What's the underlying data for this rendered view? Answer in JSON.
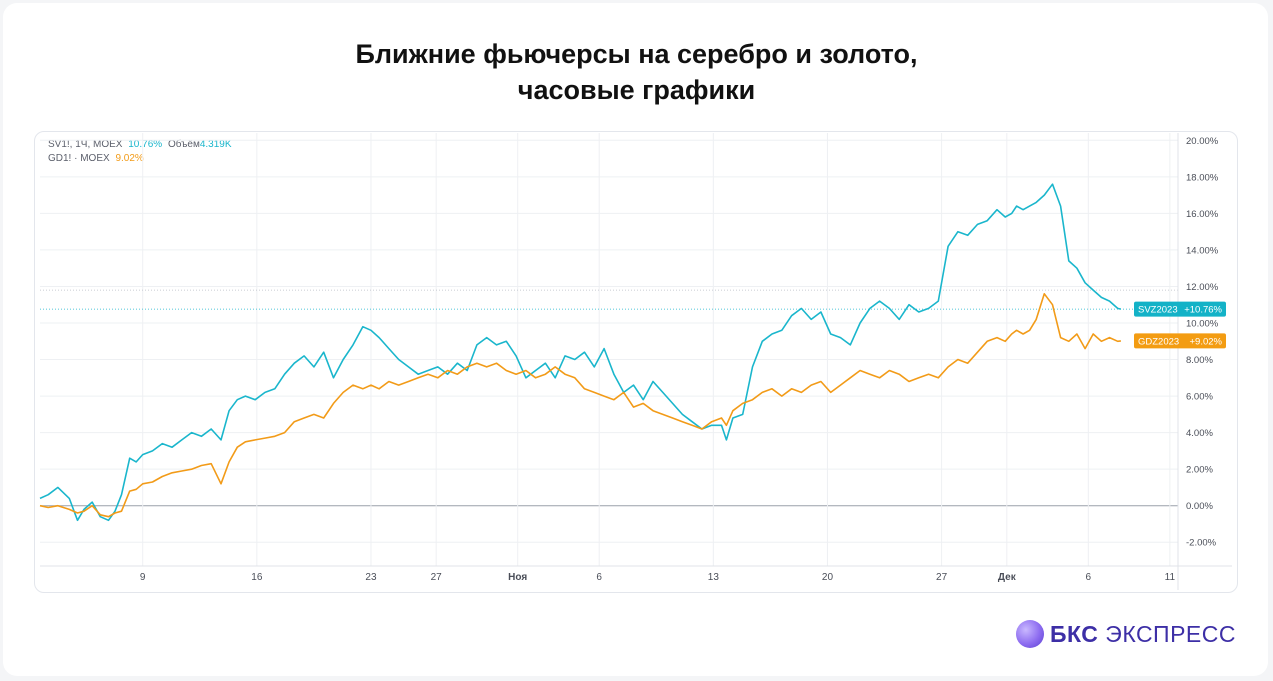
{
  "header": {
    "title_line1": "Ближние фьючерсы на серебро и золото,",
    "title_line2": "часовые графики"
  },
  "legend": {
    "silver_symbol": "SV1!, 1Ч, MOEX",
    "silver_value": "10.76%",
    "volume_label": "Объём",
    "volume_value": "4.319K",
    "gold_symbol": "GD1! · MOEX",
    "gold_value": "9.02%"
  },
  "price_labels": {
    "silver_badge": "SVZ2023",
    "silver_change": "+10.76%",
    "gold_badge": "GDZ2023",
    "gold_change": "+9.02%"
  },
  "brand": {
    "name_bold": "БКС",
    "name_regular": "ЭКСПРЕСС"
  },
  "colors": {
    "silver": "#1ab6cc",
    "gold": "#f29b18",
    "gold_badge": "#f39c12",
    "silver_badge": "#13b2c7",
    "grid": "#eef0f3",
    "zero_line": "#9aa0aa"
  },
  "chart_data": {
    "type": "line",
    "title": "Ближние фьючерсы на серебро и золото, часовые графики",
    "xlabel": "",
    "ylabel": "",
    "x_ticks": [
      "9",
      "16",
      "23",
      "27",
      "Ноя",
      "6",
      "13",
      "20",
      "27",
      "Дек",
      "6",
      "11"
    ],
    "x_tick_days": [
      9,
      16,
      23,
      27,
      32,
      37,
      44,
      51,
      58,
      62,
      67,
      72
    ],
    "y_ticks": [
      "-2.00%",
      "0.00%",
      "2.00%",
      "4.00%",
      "6.00%",
      "8.00%",
      "10.00%",
      "12.00%",
      "14.00%",
      "16.00%",
      "18.00%",
      "20.00%"
    ],
    "ylim": [
      -3.3,
      20.4
    ],
    "xlim": [
      2.7,
      72.5
    ],
    "y_unit": "%",
    "grid": true,
    "series": [
      {
        "name": "SVZ2023",
        "color": "#1ab6cc",
        "last_value": 10.76,
        "x": [
          2.7,
          3.2,
          3.8,
          4.5,
          5.0,
          5.4,
          5.9,
          6.4,
          6.9,
          7.3,
          7.7,
          8.2,
          8.6,
          9.0,
          9.6,
          10.2,
          10.8,
          11.4,
          12.0,
          12.6,
          13.2,
          13.8,
          14.3,
          14.8,
          15.3,
          15.9,
          16.5,
          17.1,
          17.7,
          18.3,
          18.9,
          19.5,
          20.1,
          20.7,
          21.3,
          21.9,
          22.5,
          23.0,
          23.5,
          24.1,
          24.7,
          25.3,
          25.9,
          26.5,
          27.1,
          27.7,
          28.3,
          28.9,
          29.5,
          30.1,
          30.7,
          31.3,
          31.9,
          32.5,
          33.1,
          33.7,
          34.3,
          34.9,
          35.5,
          36.1,
          36.7,
          37.3,
          37.9,
          38.5,
          39.1,
          39.7,
          40.3,
          40.9,
          41.5,
          42.1,
          42.7,
          43.3,
          43.9,
          44.5,
          44.8,
          45.2,
          45.8,
          46.4,
          47.0,
          47.6,
          48.2,
          48.8,
          49.4,
          50.0,
          50.6,
          51.2,
          51.8,
          52.4,
          53.0,
          53.6,
          54.2,
          54.8,
          55.4,
          56.0,
          56.6,
          57.2,
          57.8,
          58.4,
          59.0,
          59.6,
          60.2,
          60.8,
          61.4,
          61.9,
          62.3,
          62.6,
          63.0,
          63.4,
          63.8,
          64.3,
          64.8,
          65.3,
          65.8,
          66.3,
          66.8,
          67.3,
          67.8,
          68.3,
          68.8,
          69.0
        ],
        "values": [
          0.4,
          0.6,
          1.0,
          0.4,
          -0.8,
          -0.2,
          0.2,
          -0.6,
          -0.8,
          -0.3,
          0.6,
          2.6,
          2.4,
          2.8,
          3.0,
          3.4,
          3.2,
          3.6,
          4.0,
          3.8,
          4.2,
          3.6,
          5.2,
          5.8,
          6.0,
          5.8,
          6.2,
          6.4,
          7.2,
          7.8,
          8.2,
          7.6,
          8.4,
          7.0,
          8.0,
          8.8,
          9.8,
          9.6,
          9.2,
          8.6,
          8.0,
          7.6,
          7.2,
          7.4,
          7.6,
          7.2,
          7.8,
          7.4,
          8.8,
          9.2,
          8.8,
          9.0,
          8.2,
          7.0,
          7.4,
          7.8,
          7.0,
          8.2,
          8.0,
          8.4,
          7.6,
          8.6,
          7.2,
          6.2,
          6.6,
          5.8,
          6.8,
          6.2,
          5.6,
          5.0,
          4.6,
          4.2,
          4.4,
          4.4,
          3.6,
          4.8,
          5.0,
          7.6,
          9.0,
          9.4,
          9.6,
          10.4,
          10.8,
          10.2,
          10.6,
          9.4,
          9.2,
          8.8,
          10.0,
          10.8,
          11.2,
          10.8,
          10.2,
          11.0,
          10.6,
          10.8,
          11.2,
          14.2,
          15.0,
          14.8,
          15.4,
          15.6,
          16.2,
          15.8,
          16.0,
          16.4,
          16.2,
          16.4,
          16.6,
          17.0,
          17.6,
          16.4,
          13.4,
          13.0,
          12.2,
          11.8,
          11.4,
          11.2,
          10.8,
          10.76
        ]
      },
      {
        "name": "GDZ2023",
        "color": "#f29b18",
        "last_value": 9.02,
        "x": [
          2.7,
          3.2,
          3.8,
          4.5,
          5.0,
          5.4,
          5.9,
          6.4,
          6.9,
          7.3,
          7.7,
          8.2,
          8.6,
          9.0,
          9.6,
          10.2,
          10.8,
          11.4,
          12.0,
          12.6,
          13.2,
          13.8,
          14.3,
          14.8,
          15.3,
          15.9,
          16.5,
          17.1,
          17.7,
          18.3,
          18.9,
          19.5,
          20.1,
          20.7,
          21.3,
          21.9,
          22.5,
          23.0,
          23.5,
          24.1,
          24.7,
          25.3,
          25.9,
          26.5,
          27.1,
          27.7,
          28.3,
          28.9,
          29.5,
          30.1,
          30.7,
          31.3,
          31.9,
          32.5,
          33.1,
          33.7,
          34.3,
          34.9,
          35.5,
          36.1,
          36.7,
          37.3,
          37.9,
          38.5,
          39.1,
          39.7,
          40.3,
          40.9,
          41.5,
          42.1,
          42.7,
          43.3,
          43.9,
          44.5,
          44.8,
          45.2,
          45.8,
          46.4,
          47.0,
          47.6,
          48.2,
          48.8,
          49.4,
          50.0,
          50.6,
          51.2,
          51.8,
          52.4,
          53.0,
          53.6,
          54.2,
          54.8,
          55.4,
          56.0,
          56.6,
          57.2,
          57.8,
          58.4,
          59.0,
          59.6,
          60.2,
          60.8,
          61.4,
          61.9,
          62.3,
          62.6,
          63.0,
          63.4,
          63.8,
          64.3,
          64.8,
          65.3,
          65.8,
          66.3,
          66.8,
          67.3,
          67.8,
          68.3,
          68.8,
          69.0
        ],
        "values": [
          0.0,
          -0.1,
          0.0,
          -0.2,
          -0.4,
          -0.3,
          0.0,
          -0.5,
          -0.6,
          -0.4,
          -0.3,
          0.8,
          0.9,
          1.2,
          1.3,
          1.6,
          1.8,
          1.9,
          2.0,
          2.2,
          2.3,
          1.2,
          2.4,
          3.2,
          3.5,
          3.6,
          3.7,
          3.8,
          4.0,
          4.6,
          4.8,
          5.0,
          4.8,
          5.6,
          6.2,
          6.6,
          6.4,
          6.6,
          6.4,
          6.8,
          6.6,
          6.8,
          7.0,
          7.2,
          7.0,
          7.4,
          7.2,
          7.6,
          7.8,
          7.6,
          7.8,
          7.4,
          7.2,
          7.4,
          7.0,
          7.2,
          7.6,
          7.2,
          7.0,
          6.4,
          6.2,
          6.0,
          5.8,
          6.2,
          5.4,
          5.6,
          5.2,
          5.0,
          4.8,
          4.6,
          4.4,
          4.2,
          4.6,
          4.8,
          4.4,
          5.2,
          5.6,
          5.8,
          6.2,
          6.4,
          6.0,
          6.4,
          6.2,
          6.6,
          6.8,
          6.2,
          6.6,
          7.0,
          7.4,
          7.2,
          7.0,
          7.4,
          7.2,
          6.8,
          7.0,
          7.2,
          7.0,
          7.6,
          8.0,
          7.8,
          8.4,
          9.0,
          9.2,
          9.0,
          9.4,
          9.6,
          9.4,
          9.6,
          10.2,
          11.6,
          11.0,
          9.2,
          9.0,
          9.4,
          8.6,
          9.4,
          9.0,
          9.2,
          9.0,
          9.02
        ]
      }
    ]
  }
}
